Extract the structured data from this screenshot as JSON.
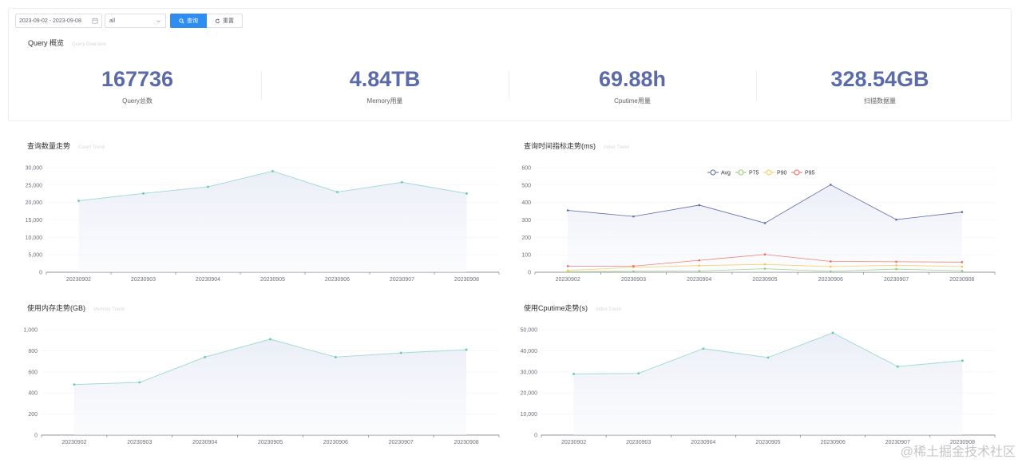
{
  "toolbar": {
    "date_range": "2023-09-02 - 2023-09-08",
    "select_value": "all",
    "search_label": "查询",
    "reset_label": "重置"
  },
  "overview": {
    "title": "Query 概览",
    "subtitle": "Query Overview",
    "stats": [
      {
        "value": "167736",
        "label": "Query总数"
      },
      {
        "value": "4.84TB",
        "label": "Memory用量"
      },
      {
        "value": "69.88h",
        "label": "Cputime用量"
      },
      {
        "value": "328.54GB",
        "label": "扫描数据量"
      }
    ]
  },
  "colors": {
    "stat_value": "#5b6aa8",
    "primary_button": "#2f8cf0",
    "trend_line": "#9ed9d3",
    "trend_point": "#5fcfa8",
    "avg": "#5b6aa8",
    "p75": "#91cc75",
    "p90": "#fac858",
    "p95": "#ee6666"
  },
  "chart_data": [
    {
      "type": "area",
      "title": "查询数量走势",
      "subtitle": "Count Trend",
      "categories": [
        "20230902",
        "20230903",
        "20230904",
        "20230905",
        "20230906",
        "20230907",
        "20230908"
      ],
      "values": [
        20500,
        22600,
        24500,
        29000,
        23000,
        25800,
        22600
      ],
      "ylim": [
        0,
        30000
      ],
      "yticks": [
        "0",
        "5,000",
        "10,000",
        "15,000",
        "20,000",
        "25,000",
        "30,000"
      ]
    },
    {
      "type": "line",
      "title": "查询时间指标走势(ms)",
      "subtitle": "Index Trend",
      "categories": [
        "20230902",
        "20230903",
        "20230904",
        "20230905",
        "20230906",
        "20230907",
        "20230908"
      ],
      "legend": [
        "Avg",
        "P75",
        "P90",
        "P95"
      ],
      "series": [
        {
          "name": "Avg",
          "values": [
            355,
            320,
            385,
            282,
            502,
            302,
            345
          ]
        },
        {
          "name": "P75",
          "values": [
            3,
            5,
            7,
            20,
            5,
            18,
            8
          ]
        },
        {
          "name": "P90",
          "values": [
            10,
            28,
            38,
            45,
            32,
            40,
            32
          ]
        },
        {
          "name": "P95",
          "values": [
            35,
            35,
            68,
            102,
            62,
            60,
            58
          ]
        }
      ],
      "ylim": [
        0,
        600
      ],
      "yticks": [
        "0",
        "100",
        "200",
        "300",
        "400",
        "500",
        "600"
      ]
    },
    {
      "type": "area",
      "title": "使用内存走势(GB)",
      "subtitle": "Memory Trend",
      "categories": [
        "20230902",
        "20230903",
        "20230904",
        "20230905",
        "20230906",
        "20230907",
        "20230908"
      ],
      "values": [
        480,
        500,
        740,
        910,
        740,
        780,
        810
      ],
      "ylim": [
        0,
        1000
      ],
      "yticks": [
        "0",
        "200",
        "400",
        "600",
        "800",
        "1,000"
      ]
    },
    {
      "type": "area",
      "title": "使用Cputime走势(s)",
      "subtitle": "Index Trend",
      "categories": [
        "20230902",
        "20230903",
        "20230904",
        "20230905",
        "20230906",
        "20230907",
        "20230908"
      ],
      "values": [
        29000,
        29300,
        41000,
        36800,
        48500,
        32500,
        35300
      ],
      "ylim": [
        0,
        50000
      ],
      "yticks": [
        "0",
        "10,000",
        "20,000",
        "30,000",
        "40,000",
        "50,000"
      ]
    }
  ],
  "watermark": "@稀土掘金技术社区"
}
